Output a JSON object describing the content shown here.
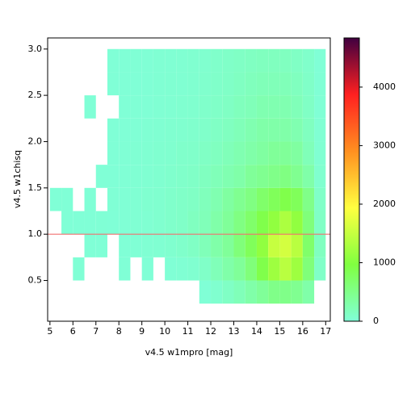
{
  "chart_data": {
    "type": "heatmap",
    "xlabel": "v4.5 w1mpro [mag]",
    "ylabel": "v4.5 w1chisq",
    "xbins": [
      5,
      5.5,
      6,
      6.5,
      7,
      7.5,
      8,
      8.5,
      9,
      9.5,
      10,
      10.5,
      11,
      11.5,
      12,
      12.5,
      13,
      13.5,
      14,
      14.5,
      15,
      15.5,
      16,
      16.5,
      17
    ],
    "ybins": [
      0.25,
      0.5,
      0.75,
      1.0,
      1.25,
      1.5,
      1.75,
      2.0,
      2.25,
      2.5,
      2.75,
      3.0
    ],
    "z": [
      [
        0,
        0,
        0,
        0,
        0,
        0,
        0,
        0,
        0,
        0,
        0,
        0,
        0,
        10,
        60,
        120,
        200,
        300,
        400,
        500,
        500,
        450,
        300,
        0
      ],
      [
        0,
        0,
        20,
        0,
        0,
        0,
        10,
        0,
        10,
        0,
        20,
        30,
        50,
        100,
        200,
        300,
        400,
        600,
        900,
        1200,
        1400,
        1200,
        600,
        100
      ],
      [
        0,
        0,
        0,
        10,
        10,
        0,
        10,
        20,
        30,
        40,
        60,
        80,
        120,
        200,
        300,
        400,
        600,
        800,
        1100,
        1500,
        1600,
        1400,
        700,
        150
      ],
      [
        0,
        10,
        10,
        10,
        20,
        10,
        20,
        30,
        40,
        60,
        80,
        100,
        150,
        200,
        300,
        400,
        550,
        700,
        900,
        1100,
        1300,
        1100,
        600,
        120
      ],
      [
        10,
        10,
        0,
        10,
        0,
        20,
        20,
        30,
        50,
        60,
        80,
        100,
        120,
        180,
        250,
        350,
        450,
        550,
        700,
        800,
        900,
        800,
        500,
        100
      ],
      [
        0,
        0,
        0,
        0,
        10,
        10,
        20,
        30,
        40,
        50,
        70,
        90,
        110,
        150,
        200,
        250,
        300,
        400,
        450,
        500,
        550,
        450,
        300,
        60
      ],
      [
        0,
        0,
        0,
        0,
        0,
        10,
        20,
        30,
        40,
        50,
        60,
        80,
        90,
        120,
        150,
        200,
        250,
        300,
        350,
        400,
        400,
        350,
        200,
        40
      ],
      [
        0,
        0,
        0,
        0,
        0,
        10,
        10,
        20,
        30,
        40,
        50,
        60,
        70,
        90,
        120,
        150,
        200,
        250,
        300,
        300,
        300,
        250,
        150,
        30
      ],
      [
        0,
        0,
        0,
        10,
        0,
        0,
        10,
        20,
        20,
        30,
        40,
        50,
        60,
        80,
        100,
        130,
        170,
        200,
        250,
        250,
        250,
        200,
        120,
        20
      ],
      [
        0,
        0,
        0,
        0,
        0,
        10,
        10,
        10,
        20,
        30,
        40,
        40,
        50,
        70,
        90,
        110,
        140,
        170,
        200,
        200,
        200,
        160,
        100,
        20
      ],
      [
        0,
        0,
        0,
        0,
        0,
        10,
        10,
        20,
        20,
        30,
        30,
        40,
        50,
        60,
        80,
        100,
        120,
        140,
        160,
        160,
        150,
        120,
        80,
        10
      ]
    ],
    "xlim": [
      4.9,
      17.2
    ],
    "ylim": [
      0.06,
      3.12
    ],
    "xticks": [
      5,
      6,
      7,
      8,
      9,
      10,
      11,
      12,
      13,
      14,
      15,
      16,
      17
    ],
    "yticks": [
      0.5,
      {
        "value": 1.0,
        "label": "1.0"
      },
      1.5,
      {
        "value": 2.0,
        "label": "2.0"
      },
      2.5,
      {
        "value": 3.0,
        "label": "3.0"
      }
    ],
    "hline": {
      "value": 1.0,
      "color": "#f07070"
    },
    "colormap": [
      "#80ffd8",
      "#80ff40",
      "#ffff40",
      "#ff9020",
      "#ff2020",
      "#400040"
    ],
    "clim": [
      0,
      4840
    ],
    "cticks": [
      0,
      1000,
      2000,
      3000,
      4000
    ]
  }
}
